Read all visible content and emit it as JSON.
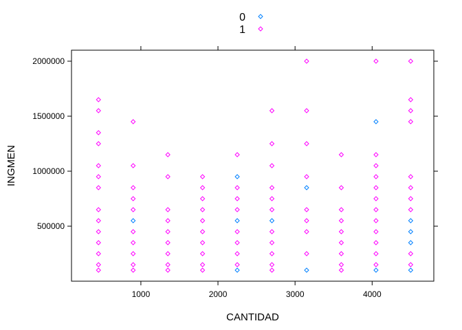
{
  "chart_data": {
    "type": "scatter",
    "xlabel": "CANTIDAD",
    "ylabel": "INGMEN",
    "xlim": [
      100,
      4800
    ],
    "ylim": [
      0,
      2100000
    ],
    "x_ticks": [
      1000,
      2000,
      3000,
      4000
    ],
    "y_ticks": [
      500000,
      1000000,
      1500000,
      2000000
    ],
    "legend_position": "top-center",
    "grid": false,
    "series": [
      {
        "name": "0",
        "color": "#0080ff",
        "points": [
          [
            900,
            550000
          ],
          [
            2250,
            100000
          ],
          [
            2250,
            550000
          ],
          [
            2250,
            950000
          ],
          [
            2700,
            550000
          ],
          [
            3150,
            100000
          ],
          [
            3150,
            850000
          ],
          [
            4050,
            100000
          ],
          [
            4050,
            1450000
          ],
          [
            4500,
            100000
          ],
          [
            4500,
            350000
          ],
          [
            4500,
            450000
          ],
          [
            4500,
            550000
          ]
        ]
      },
      {
        "name": "1",
        "color": "#ff00ff",
        "points": [
          [
            450,
            100000
          ],
          [
            450,
            150000
          ],
          [
            450,
            250000
          ],
          [
            450,
            350000
          ],
          [
            450,
            450000
          ],
          [
            450,
            550000
          ],
          [
            450,
            650000
          ],
          [
            450,
            850000
          ],
          [
            450,
            950000
          ],
          [
            450,
            1050000
          ],
          [
            450,
            1250000
          ],
          [
            450,
            1350000
          ],
          [
            450,
            1550000
          ],
          [
            450,
            1650000
          ],
          [
            900,
            100000
          ],
          [
            900,
            150000
          ],
          [
            900,
            250000
          ],
          [
            900,
            350000
          ],
          [
            900,
            450000
          ],
          [
            900,
            650000
          ],
          [
            900,
            750000
          ],
          [
            900,
            850000
          ],
          [
            900,
            1050000
          ],
          [
            900,
            1450000
          ],
          [
            1350,
            100000
          ],
          [
            1350,
            150000
          ],
          [
            1350,
            250000
          ],
          [
            1350,
            350000
          ],
          [
            1350,
            450000
          ],
          [
            1350,
            550000
          ],
          [
            1350,
            650000
          ],
          [
            1350,
            950000
          ],
          [
            1350,
            1150000
          ],
          [
            1800,
            100000
          ],
          [
            1800,
            150000
          ],
          [
            1800,
            250000
          ],
          [
            1800,
            350000
          ],
          [
            1800,
            450000
          ],
          [
            1800,
            550000
          ],
          [
            1800,
            650000
          ],
          [
            1800,
            750000
          ],
          [
            1800,
            850000
          ],
          [
            1800,
            950000
          ],
          [
            2250,
            150000
          ],
          [
            2250,
            250000
          ],
          [
            2250,
            350000
          ],
          [
            2250,
            450000
          ],
          [
            2250,
            650000
          ],
          [
            2250,
            750000
          ],
          [
            2250,
            850000
          ],
          [
            2250,
            1150000
          ],
          [
            2700,
            100000
          ],
          [
            2700,
            150000
          ],
          [
            2700,
            250000
          ],
          [
            2700,
            350000
          ],
          [
            2700,
            450000
          ],
          [
            2700,
            650000
          ],
          [
            2700,
            750000
          ],
          [
            2700,
            850000
          ],
          [
            2700,
            1050000
          ],
          [
            2700,
            1250000
          ],
          [
            2700,
            1550000
          ],
          [
            3150,
            250000
          ],
          [
            3150,
            450000
          ],
          [
            3150,
            550000
          ],
          [
            3150,
            650000
          ],
          [
            3150,
            950000
          ],
          [
            3150,
            1250000
          ],
          [
            3150,
            1550000
          ],
          [
            3150,
            2000000
          ],
          [
            3600,
            100000
          ],
          [
            3600,
            150000
          ],
          [
            3600,
            250000
          ],
          [
            3600,
            350000
          ],
          [
            3600,
            450000
          ],
          [
            3600,
            550000
          ],
          [
            3600,
            650000
          ],
          [
            3600,
            850000
          ],
          [
            3600,
            1150000
          ],
          [
            4050,
            150000
          ],
          [
            4050,
            250000
          ],
          [
            4050,
            350000
          ],
          [
            4050,
            450000
          ],
          [
            4050,
            550000
          ],
          [
            4050,
            650000
          ],
          [
            4050,
            750000
          ],
          [
            4050,
            850000
          ],
          [
            4050,
            950000
          ],
          [
            4050,
            1050000
          ],
          [
            4050,
            1150000
          ],
          [
            4050,
            2000000
          ],
          [
            4500,
            150000
          ],
          [
            4500,
            250000
          ],
          [
            4500,
            650000
          ],
          [
            4500,
            750000
          ],
          [
            4500,
            850000
          ],
          [
            4500,
            950000
          ],
          [
            4500,
            1450000
          ],
          [
            4500,
            1550000
          ],
          [
            4500,
            1650000
          ],
          [
            4500,
            2000000
          ]
        ]
      }
    ]
  }
}
